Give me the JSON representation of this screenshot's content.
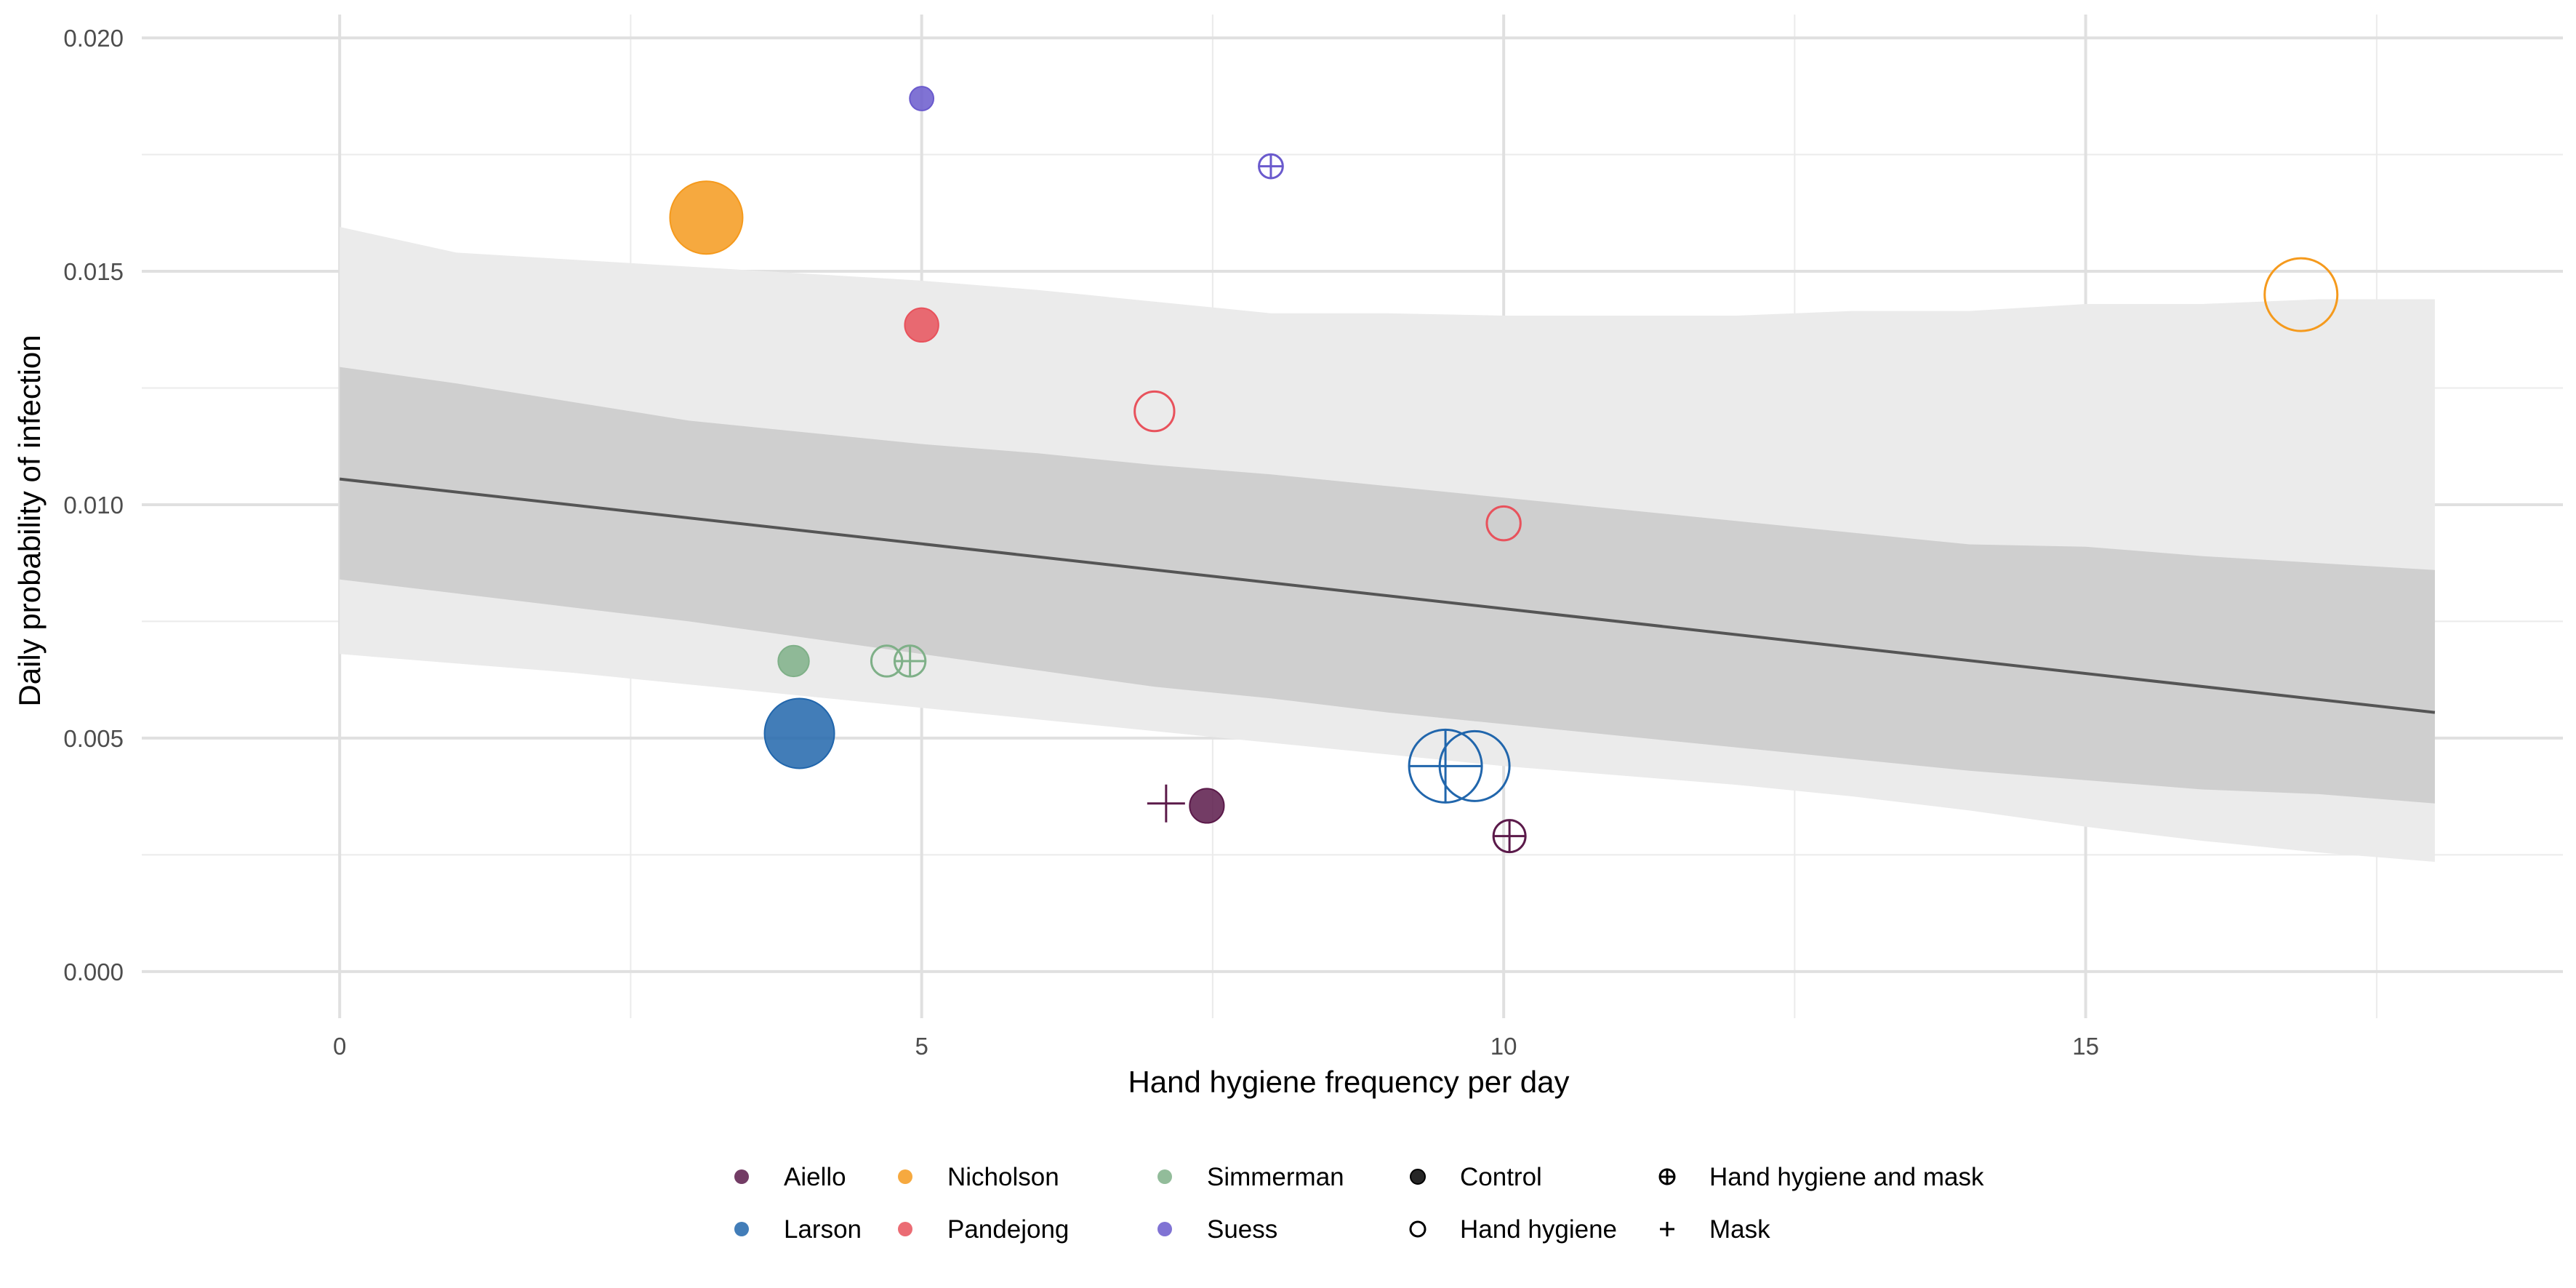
{
  "chart_data": {
    "type": "scatter",
    "title": "",
    "xlabel": "Hand hygiene frequency per day",
    "ylabel": "Daily probability of infection",
    "xlim": [
      -1.7,
      19.1
    ],
    "ylim": [
      -0.001,
      0.0205
    ],
    "x_ticks": [
      0,
      5,
      10,
      15
    ],
    "x_tick_labels": [
      "0",
      "5",
      "10",
      "15"
    ],
    "y_ticks": [
      0.0,
      0.005,
      0.01,
      0.015,
      0.02
    ],
    "y_tick_labels": [
      "0.000",
      "0.005",
      "0.010",
      "0.015",
      "0.020"
    ],
    "grid": true,
    "legend_position": "bottom",
    "study_legend": [
      {
        "name": "Aiello",
        "color": "#5b1a4a"
      },
      {
        "name": "Larson",
        "color": "#2166ac"
      },
      {
        "name": "Nicholson",
        "color": "#f59a1d"
      },
      {
        "name": "Pandejong",
        "color": "#e8525c"
      },
      {
        "name": "Simmerman",
        "color": "#7fb088"
      },
      {
        "name": "Suess",
        "color": "#6a5acd"
      }
    ],
    "arm_legend": [
      {
        "name": "Control",
        "shape": "filled-circle"
      },
      {
        "name": "Hand hygiene",
        "shape": "open-circle"
      },
      {
        "name": "Hand hygiene and mask",
        "shape": "circle-plus"
      },
      {
        "name": "Mask",
        "shape": "plus"
      }
    ],
    "points": [
      {
        "study": "Aiello",
        "arm": "Control",
        "x": 7.45,
        "y": 0.00355,
        "size": 0.34
      },
      {
        "study": "Aiello",
        "arm": "Mask",
        "x": 7.1,
        "y": 0.0036,
        "size": 0.4
      },
      {
        "study": "Aiello",
        "arm": "Hand hygiene and mask",
        "x": 10.05,
        "y": 0.0029,
        "size": 0.3
      },
      {
        "study": "Larson",
        "arm": "Control",
        "x": 3.95,
        "y": 0.0051,
        "size": 0.95
      },
      {
        "study": "Larson",
        "arm": "Hand hygiene and mask",
        "x": 9.5,
        "y": 0.0044,
        "size": 1.0
      },
      {
        "study": "Larson",
        "arm": "Hand hygiene",
        "x": 9.75,
        "y": 0.0044,
        "size": 0.95
      },
      {
        "study": "Nicholson",
        "arm": "Control",
        "x": 3.15,
        "y": 0.01615,
        "size": 1.0
      },
      {
        "study": "Nicholson",
        "arm": "Hand hygiene",
        "x": 16.85,
        "y": 0.0145,
        "size": 1.0
      },
      {
        "study": "Pandejong",
        "arm": "Control",
        "x": 5.0,
        "y": 0.01385,
        "size": 0.33
      },
      {
        "study": "Pandejong",
        "arm": "Hand hygiene",
        "x": 7.0,
        "y": 0.012,
        "size": 0.43
      },
      {
        "study": "Pandejong",
        "arm": "Hand hygiene",
        "x": 10.0,
        "y": 0.0096,
        "size": 0.33
      },
      {
        "study": "Simmerman",
        "arm": "Control",
        "x": 3.9,
        "y": 0.00665,
        "size": 0.28
      },
      {
        "study": "Simmerman",
        "arm": "Hand hygiene",
        "x": 4.7,
        "y": 0.00665,
        "size": 0.28
      },
      {
        "study": "Simmerman",
        "arm": "Hand hygiene and mask",
        "x": 4.9,
        "y": 0.00665,
        "size": 0.28
      },
      {
        "study": "Suess",
        "arm": "Control",
        "x": 5.0,
        "y": 0.0187,
        "size": 0.16
      },
      {
        "study": "Suess",
        "arm": "Hand hygiene and mask",
        "x": 8.0,
        "y": 0.01725,
        "size": 0.16
      }
    ],
    "fit_line": {
      "x": [
        0,
        18
      ],
      "y": [
        0.01055,
        0.00555
      ]
    },
    "inner_band": {
      "x": [
        0,
        1,
        2,
        3,
        4,
        5,
        6,
        7,
        8,
        9,
        10,
        11,
        12,
        13,
        14,
        15,
        16,
        17,
        18
      ],
      "upper": [
        0.01295,
        0.0126,
        0.0122,
        0.0118,
        0.01155,
        0.0113,
        0.0111,
        0.01085,
        0.01065,
        0.0104,
        0.01015,
        0.0099,
        0.00965,
        0.0094,
        0.00915,
        0.0091,
        0.0089,
        0.00875,
        0.0086
      ],
      "lower": [
        0.0084,
        0.0081,
        0.0078,
        0.0075,
        0.00715,
        0.0068,
        0.00645,
        0.0061,
        0.00585,
        0.00555,
        0.0053,
        0.00505,
        0.0048,
        0.00455,
        0.0043,
        0.0041,
        0.0039,
        0.0038,
        0.0036
      ]
    },
    "outer_band": {
      "x": [
        0,
        1,
        2,
        3,
        4,
        5,
        6,
        7,
        8,
        9,
        10,
        11,
        12,
        13,
        14,
        15,
        16,
        17,
        18
      ],
      "upper": [
        0.01595,
        0.0154,
        0.01525,
        0.0151,
        0.01495,
        0.0148,
        0.0146,
        0.01435,
        0.0141,
        0.0141,
        0.01405,
        0.01405,
        0.01405,
        0.01415,
        0.01415,
        0.0143,
        0.0143,
        0.0144,
        0.0144
      ],
      "lower": [
        0.0068,
        0.0066,
        0.0064,
        0.00615,
        0.0059,
        0.00565,
        0.0054,
        0.00515,
        0.0049,
        0.00465,
        0.0044,
        0.0042,
        0.004,
        0.00375,
        0.00345,
        0.0031,
        0.0028,
        0.00255,
        0.00235
      ]
    }
  }
}
